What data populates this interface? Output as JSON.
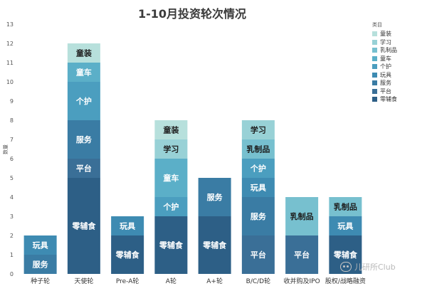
{
  "chart_data": {
    "type": "bar",
    "stacked": true,
    "title": "1-10月投资轮次情况",
    "ylabel": "数量",
    "ylim": [
      0,
      13
    ],
    "yticks": [
      0,
      1,
      2,
      3,
      4,
      5,
      6,
      7,
      8,
      9,
      10,
      11,
      12,
      13
    ],
    "grid": false,
    "legend_title": "类目",
    "legend_position": "right",
    "categories": [
      "种子轮",
      "天使轮",
      "Pre-A轮",
      "A轮",
      "A+轮",
      "B/C/D轮",
      "收并购及IPO",
      "股权/战略融资"
    ],
    "series": [
      {
        "name": "零辅食",
        "color": "#2d5f86",
        "values": [
          0,
          5,
          2,
          3,
          3,
          0,
          0,
          2
        ]
      },
      {
        "name": "平台",
        "color": "#3a6f97",
        "values": [
          0,
          1,
          0,
          0,
          0,
          2,
          2,
          0
        ]
      },
      {
        "name": "服务",
        "color": "#3a7ca4",
        "values": [
          1,
          2,
          0,
          0,
          2,
          2,
          0,
          0
        ]
      },
      {
        "name": "玩具",
        "color": "#3e8bb2",
        "values": [
          1,
          0,
          1,
          0,
          0,
          1,
          0,
          1
        ]
      },
      {
        "name": "个护",
        "color": "#4b9ebf",
        "values": [
          0,
          2,
          0,
          1,
          0,
          1,
          0,
          0
        ]
      },
      {
        "name": "童车",
        "color": "#5bafc8",
        "values": [
          0,
          1,
          0,
          2,
          0,
          0,
          0,
          0
        ]
      },
      {
        "name": "乳制品",
        "color": "#77c0cf",
        "values": [
          0,
          0,
          0,
          0,
          0,
          1,
          2,
          1
        ]
      },
      {
        "name": "学习",
        "color": "#98d1d6",
        "values": [
          0,
          0,
          0,
          1,
          0,
          1,
          0,
          0
        ]
      },
      {
        "name": "童装",
        "color": "#b7e0dc",
        "values": [
          0,
          1,
          0,
          1,
          0,
          0,
          0,
          0
        ]
      }
    ],
    "legend_order": [
      "童装",
      "学习",
      "乳制品",
      "童车",
      "个护",
      "玩具",
      "服务",
      "平台",
      "零辅食"
    ]
  },
  "watermark": "儿研所Club"
}
